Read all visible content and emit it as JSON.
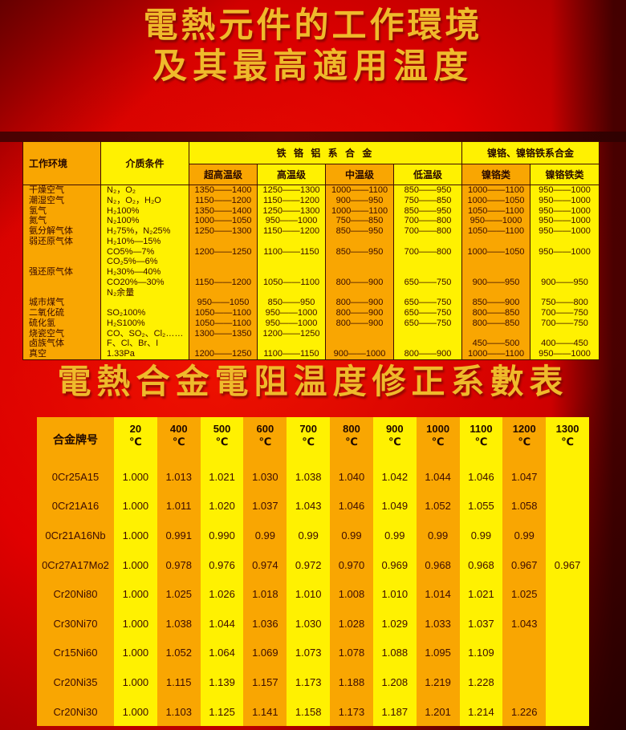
{
  "titles": {
    "line1": "電熱元件的工作環境",
    "line2": "及其最高適用温度",
    "subtitle": "電熱合金電阻温度修正系數表"
  },
  "colors": {
    "background_red": "#e10000",
    "dark_maroon": "#5d0505",
    "amber_cell": "#f9a602",
    "yellow_cell": "#fff101",
    "title_gold": "#efba2b",
    "table_border": "#3f0d02",
    "table_text": "#3a0b00"
  },
  "env_table": {
    "header": {
      "col_env": "工作环境",
      "col_medium": "介质条件",
      "group_fecral": "铁 铬 铝 系 合 金",
      "group_nicr": "镍铬、镍铬铁系合金",
      "sub_cols": [
        "超高温级",
        "高温级",
        "中温级",
        "低温级",
        "镍铬类",
        "镍铬铁类"
      ]
    },
    "lines": [
      {
        "env": "干燥空气",
        "medium": "N₂，O₂",
        "v": [
          "1350——1400",
          "1250——1300",
          "1000——1100",
          "850——950",
          "1000——1100",
          "950——1000"
        ]
      },
      {
        "env": "潮湿空气",
        "medium": "N₂，O₂，H₂O",
        "v": [
          "1150——1200",
          "1150——1200",
          "900——950",
          "750——850",
          "1000——1050",
          "950——1000"
        ]
      },
      {
        "env": "氢气",
        "medium": "H₂100%",
        "v": [
          "1350——1400",
          "1250——1300",
          "1000——1100",
          "850——950",
          "1050——1100",
          "950——1000"
        ]
      },
      {
        "env": "氮气",
        "medium": "N₂100%",
        "v": [
          "1000——1050",
          "950——1000",
          "750——850",
          "700——800",
          "950——1000",
          "950——1000"
        ]
      },
      {
        "env": "氨分解气体",
        "medium": "H₂75%，N₂25%",
        "v": [
          "1250——1300",
          "1150——1200",
          "850——950",
          "700——800",
          "1050——1100",
          "950——1000"
        ]
      },
      {
        "env": "弱还原气体",
        "medium": "H₂10%—15%",
        "v": [
          "",
          "",
          "",
          "",
          "",
          ""
        ]
      },
      {
        "env": "",
        "medium": "CO5%—7%",
        "v": [
          "1200——1250",
          "1100——1150",
          "850——950",
          "700——800",
          "1000——1050",
          "950——1000"
        ]
      },
      {
        "env": "",
        "medium": "CO₂5%—6%",
        "v": [
          "",
          "",
          "",
          "",
          "",
          ""
        ]
      },
      {
        "env": "强还原气体",
        "medium": "H₂30%—40%",
        "v": [
          "",
          "",
          "",
          "",
          "",
          ""
        ]
      },
      {
        "env": "",
        "medium": "CO20%—30%",
        "v": [
          "1150——1200",
          "1050——1100",
          "800——900",
          "650——750",
          "900——950",
          "900——950"
        ]
      },
      {
        "env": "",
        "medium": "N₂余量",
        "v": [
          "",
          "",
          "",
          "",
          "",
          ""
        ]
      },
      {
        "env": "城市煤气",
        "medium": "",
        "v": [
          "950——1050",
          "850——950",
          "800——900",
          "650——750",
          "850——900",
          "750——800"
        ]
      },
      {
        "env": "二氧化硫",
        "medium": "SO₂100%",
        "v": [
          "1050——1100",
          "950——1000",
          "800——900",
          "650——750",
          "800——850",
          "700——750"
        ]
      },
      {
        "env": "硫化氢",
        "medium": "H₂S100%",
        "v": [
          "1050——1100",
          "950——1000",
          "800——900",
          "650——750",
          "800——850",
          "700——750"
        ]
      },
      {
        "env": "烧瓷空气",
        "medium": "CO、SO₂、Cl₂……",
        "v": [
          "1300——1350",
          "1200——1250",
          "",
          "",
          "",
          ""
        ]
      },
      {
        "env": "卤族气体",
        "medium": "F、Cl、Br、I",
        "v": [
          "",
          "",
          "",
          "",
          "450——500",
          "400——450"
        ]
      },
      {
        "env": "真空",
        "medium": "1.33Pa",
        "v": [
          "1200——1250",
          "1100——1150",
          "900——1000",
          "800——900",
          "1000——1100",
          "950——1000"
        ]
      }
    ]
  },
  "coef_table": {
    "header": {
      "col_alloy": "合金牌号",
      "temps": [
        "20",
        "400",
        "500",
        "600",
        "700",
        "800",
        "900",
        "1000",
        "1100",
        "1200",
        "1300"
      ],
      "unit": "℃"
    },
    "rows": [
      {
        "alloy": "0Cr25A15",
        "values": [
          "1.000",
          "1.013",
          "1.021",
          "1.030",
          "1.038",
          "1.040",
          "1.042",
          "1.044",
          "1.046",
          "1.047",
          ""
        ]
      },
      {
        "alloy": "0Cr21A16",
        "values": [
          "1.000",
          "1.011",
          "1.020",
          "1.037",
          "1.043",
          "1.046",
          "1.049",
          "1.052",
          "1.055",
          "1.058",
          ""
        ]
      },
      {
        "alloy": "0Cr21A16Nb",
        "values": [
          "1.000",
          "0.991",
          "0.990",
          "0.99",
          "0.99",
          "0.99",
          "0.99",
          "0.99",
          "0.99",
          "0.99",
          ""
        ]
      },
      {
        "alloy": "0Cr27A17Mo2",
        "values": [
          "1.000",
          "0.978",
          "0.976",
          "0.974",
          "0.972",
          "0.970",
          "0.969",
          "0.968",
          "0.968",
          "0.967",
          "0.967"
        ]
      },
      {
        "alloy": "Cr20Ni80",
        "values": [
          "1.000",
          "1.025",
          "1.026",
          "1.018",
          "1.010",
          "1.008",
          "1.010",
          "1.014",
          "1.021",
          "1.025",
          ""
        ]
      },
      {
        "alloy": "Cr30Ni70",
        "values": [
          "1.000",
          "1.038",
          "1.044",
          "1.036",
          "1.030",
          "1.028",
          "1.029",
          "1.033",
          "1.037",
          "1.043",
          ""
        ]
      },
      {
        "alloy": "Cr15Ni60",
        "values": [
          "1.000",
          "1.052",
          "1.064",
          "1.069",
          "1.073",
          "1.078",
          "1.088",
          "1.095",
          "1.109",
          "",
          ""
        ]
      },
      {
        "alloy": "Cr20Ni35",
        "values": [
          "1.000",
          "1.115",
          "1.139",
          "1.157",
          "1.173",
          "1.188",
          "1.208",
          "1.219",
          "1.228",
          "",
          ""
        ]
      },
      {
        "alloy": "Cr20Ni30",
        "values": [
          "1.000",
          "1.103",
          "1.125",
          "1.141",
          "1.158",
          "1.173",
          "1.187",
          "1.201",
          "1.214",
          "1.226",
          ""
        ]
      }
    ]
  }
}
